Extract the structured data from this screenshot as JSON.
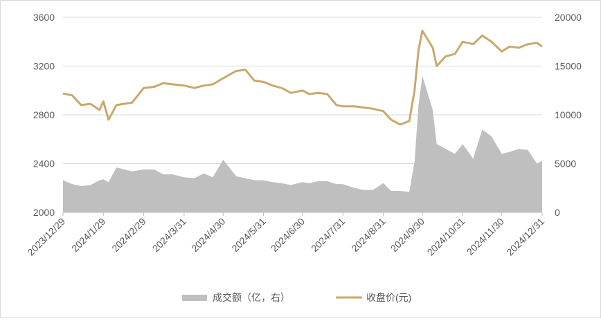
{
  "chart_data": {
    "type": "area+line",
    "title": "",
    "left_axis": {
      "ylim": [
        2000,
        3600
      ],
      "ticks": [
        "2000",
        "2400",
        "2800",
        "3200",
        "3600"
      ]
    },
    "right_axis": {
      "ylim": [
        0,
        20000
      ],
      "ticks": [
        "0",
        "5000",
        "10000",
        "15000",
        "20000"
      ]
    },
    "x_tick_labels": [
      "2023/12/29",
      "2024/1/29",
      "2024/2/29",
      "2024/3/31",
      "2024/4/30",
      "2024/5/31",
      "2024/6/30",
      "2024/7/31",
      "2024/8/31",
      "2024/9/30",
      "2024/10/31",
      "2024/11/30",
      "2024/12/31"
    ],
    "grid": "horizontal",
    "legend_position": "bottom",
    "series": [
      {
        "name": "成交额（亿，右）",
        "type": "area",
        "axis": "right",
        "color": "#bfbfbf",
        "x": [
          "2023/12/29",
          "2024/1/5",
          "2024/1/12",
          "2024/1/19",
          "2024/1/26",
          "2024/1/29",
          "2024/2/2",
          "2024/2/8",
          "2024/2/20",
          "2024/2/29",
          "2024/3/8",
          "2024/3/15",
          "2024/3/22",
          "2024/3/31",
          "2024/4/8",
          "2024/4/15",
          "2024/4/22",
          "2024/4/30",
          "2024/5/10",
          "2024/5/17",
          "2024/5/24",
          "2024/5/31",
          "2024/6/7",
          "2024/6/14",
          "2024/6/21",
          "2024/6/30",
          "2024/7/5",
          "2024/7/12",
          "2024/7/19",
          "2024/7/26",
          "2024/7/31",
          "2024/8/9",
          "2024/8/16",
          "2024/8/23",
          "2024/8/31",
          "2024/9/6",
          "2024/9/13",
          "2024/9/20",
          "2024/9/24",
          "2024/9/27",
          "2024/9/30",
          "2024/10/8",
          "2024/10/11",
          "2024/10/18",
          "2024/10/25",
          "2024/10/31",
          "2024/11/8",
          "2024/11/15",
          "2024/11/22",
          "2024/11/30",
          "2024/12/6",
          "2024/12/13",
          "2024/12/20",
          "2024/12/27",
          "2024/12/31"
        ],
        "values": [
          3300,
          2900,
          2700,
          2800,
          3300,
          3400,
          3100,
          4600,
          4200,
          4400,
          4400,
          3900,
          3900,
          3600,
          3500,
          4000,
          3600,
          5400,
          3700,
          3500,
          3300,
          3300,
          3100,
          3000,
          2800,
          3100,
          3000,
          3200,
          3200,
          2900,
          2900,
          2500,
          2300,
          2300,
          3000,
          2200,
          2200,
          2100,
          5200,
          11000,
          14000,
          10500,
          7000,
          6500,
          6000,
          7000,
          5500,
          8500,
          7800,
          6000,
          6200,
          6500,
          6400,
          5000,
          5300
        ]
      },
      {
        "name": "收盘价(元)",
        "type": "line",
        "axis": "left",
        "color": "#c9a86c",
        "x": [
          "2023/12/29",
          "2024/1/5",
          "2024/1/12",
          "2024/1/19",
          "2024/1/26",
          "2024/1/29",
          "2024/2/2",
          "2024/2/8",
          "2024/2/20",
          "2024/2/29",
          "2024/3/8",
          "2024/3/15",
          "2024/3/22",
          "2024/3/31",
          "2024/4/8",
          "2024/4/15",
          "2024/4/22",
          "2024/4/30",
          "2024/5/10",
          "2024/5/17",
          "2024/5/24",
          "2024/5/31",
          "2024/6/7",
          "2024/6/14",
          "2024/6/21",
          "2024/6/30",
          "2024/7/5",
          "2024/7/12",
          "2024/7/19",
          "2024/7/26",
          "2024/7/31",
          "2024/8/9",
          "2024/8/16",
          "2024/8/23",
          "2024/8/31",
          "2024/9/6",
          "2024/9/13",
          "2024/9/20",
          "2024/9/24",
          "2024/9/27",
          "2024/9/30",
          "2024/10/8",
          "2024/10/11",
          "2024/10/18",
          "2024/10/25",
          "2024/10/31",
          "2024/11/8",
          "2024/11/15",
          "2024/11/22",
          "2024/11/30",
          "2024/12/6",
          "2024/12/13",
          "2024/12/20",
          "2024/12/27",
          "2024/12/31"
        ],
        "values": [
          2975,
          2960,
          2880,
          2890,
          2840,
          2910,
          2760,
          2880,
          2900,
          3020,
          3030,
          3060,
          3050,
          3040,
          3020,
          3040,
          3050,
          3100,
          3160,
          3170,
          3080,
          3070,
          3040,
          3020,
          2980,
          3000,
          2970,
          2980,
          2970,
          2880,
          2870,
          2870,
          2860,
          2850,
          2830,
          2760,
          2720,
          2750,
          3000,
          3330,
          3490,
          3350,
          3200,
          3280,
          3300,
          3400,
          3380,
          3450,
          3400,
          3320,
          3360,
          3350,
          3380,
          3390,
          3360
        ]
      }
    ]
  }
}
